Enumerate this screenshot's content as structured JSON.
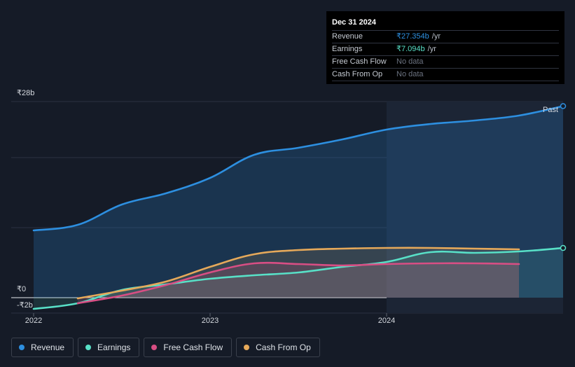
{
  "tooltip": {
    "date": "Dec 31 2024",
    "rows": [
      {
        "name": "Revenue",
        "value": "₹27.354b",
        "unit": "/yr",
        "color": "#2d8fe0"
      },
      {
        "name": "Earnings",
        "value": "₹7.094b",
        "unit": "/yr",
        "color": "#58e0c7"
      },
      {
        "name": "Free Cash Flow",
        "value": "No data",
        "unit": "",
        "color": ""
      },
      {
        "name": "Cash From Op",
        "value": "No data",
        "unit": "",
        "color": ""
      }
    ]
  },
  "past_label": "Past",
  "legend": [
    {
      "name": "Revenue",
      "color": "#2d8fe0"
    },
    {
      "name": "Earnings",
      "color": "#58e0c7"
    },
    {
      "name": "Free Cash Flow",
      "color": "#d84e84"
    },
    {
      "name": "Cash From Op",
      "color": "#e6a95a"
    }
  ],
  "chart_data": {
    "type": "line",
    "ylabel_ticks": [
      "₹28b",
      "₹0",
      "-₹2b"
    ],
    "y_ticks": [
      28,
      0,
      -2
    ],
    "x_ticks": [
      "2022",
      "2023",
      "2024"
    ],
    "x_tick_values": [
      2022.0,
      2023.0,
      2024.0
    ],
    "ylim": [
      -2,
      28
    ],
    "xlim": [
      2022.0,
      2025.0
    ],
    "past_region_start": 2024.0,
    "series": [
      {
        "name": "Revenue",
        "color": "#2d8fe0",
        "x": [
          2022.0,
          2022.25,
          2022.5,
          2022.75,
          2023.0,
          2023.25,
          2023.5,
          2023.75,
          2024.0,
          2024.25,
          2024.5,
          2024.75,
          2025.0
        ],
        "y": [
          9.6,
          10.4,
          13.3,
          14.9,
          17.1,
          20.4,
          21.4,
          22.6,
          24.0,
          24.8,
          25.3,
          26.0,
          27.354
        ]
      },
      {
        "name": "Earnings",
        "color": "#58e0c7",
        "x": [
          2022.0,
          2022.25,
          2022.5,
          2022.75,
          2023.0,
          2023.25,
          2023.5,
          2023.75,
          2024.0,
          2024.25,
          2024.5,
          2024.75,
          2025.0
        ],
        "y": [
          -1.6,
          -0.8,
          1.1,
          1.9,
          2.7,
          3.2,
          3.6,
          4.4,
          5.1,
          6.5,
          6.4,
          6.6,
          7.094
        ]
      },
      {
        "name": "Free Cash Flow",
        "color": "#d84e84",
        "x": [
          2022.25,
          2022.5,
          2022.75,
          2023.0,
          2023.25,
          2023.5,
          2023.75,
          2024.0,
          2024.25,
          2024.5,
          2024.75
        ],
        "y": [
          -0.8,
          0.3,
          1.8,
          3.6,
          4.9,
          4.8,
          4.6,
          4.8,
          4.9,
          4.9,
          4.8
        ]
      },
      {
        "name": "Cash From Op",
        "color": "#e6a95a",
        "x": [
          2022.25,
          2022.5,
          2022.75,
          2023.0,
          2023.25,
          2023.5,
          2023.75,
          2024.0,
          2024.25,
          2024.5,
          2024.75
        ],
        "y": [
          -0.1,
          1.0,
          2.3,
          4.4,
          6.2,
          6.8,
          7.0,
          7.1,
          7.1,
          7.0,
          6.9
        ]
      }
    ]
  }
}
